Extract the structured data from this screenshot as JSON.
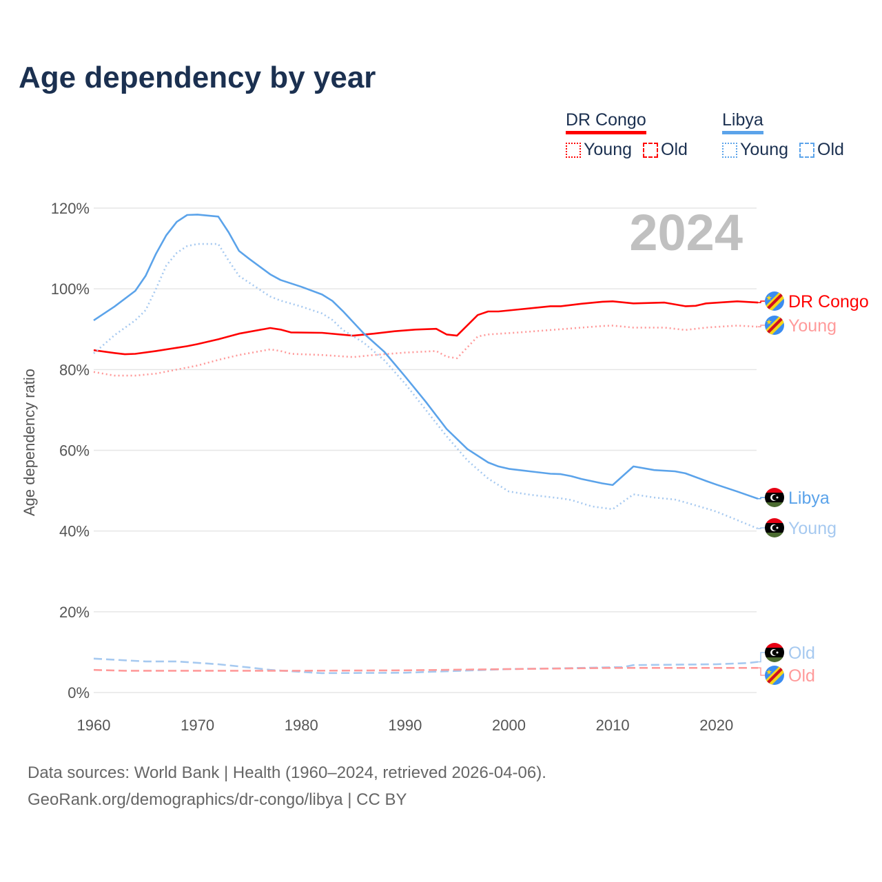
{
  "title": "Age dependency by year",
  "legend": {
    "groups": [
      {
        "country": "DR Congo",
        "color": "#ff0000",
        "items": [
          {
            "label": "Young",
            "style": "dotted"
          },
          {
            "label": "Old",
            "style": "dashed"
          }
        ]
      },
      {
        "country": "Libya",
        "color": "#5ba3ea",
        "items": [
          {
            "label": "Young",
            "style": "dotted"
          },
          {
            "label": "Old",
            "style": "dashed"
          }
        ]
      }
    ]
  },
  "year_label": "2024",
  "footer": {
    "line1": "Data sources: World Bank | Health (1960–2024, retrieved 2026-04-06).",
    "line2": "GeoRank.org/demographics/dr-congo/libya | CC BY"
  },
  "chart_data": {
    "type": "line",
    "title": "Age dependency by year",
    "xlabel": "",
    "ylabel": "Age dependency ratio",
    "xlim": [
      1960,
      2024
    ],
    "ylim": [
      0,
      120
    ],
    "x_ticks": [
      "1960",
      "1970",
      "1980",
      "1990",
      "2000",
      "2010",
      "2020"
    ],
    "y_ticks": [
      "0%",
      "20%",
      "40%",
      "60%",
      "80%",
      "100%",
      "120%"
    ],
    "grid": true,
    "legend_position": "top-right",
    "series": [
      {
        "name": "DR Congo",
        "end_label": "DR Congo",
        "flag": "dr-congo",
        "color": "#ff0000",
        "style": "solid",
        "points": [
          [
            1960,
            84.8
          ],
          [
            1962,
            84.1
          ],
          [
            1963,
            83.8
          ],
          [
            1964,
            83.9
          ],
          [
            1966,
            84.6
          ],
          [
            1969,
            85.8
          ],
          [
            1970,
            86.3
          ],
          [
            1972,
            87.5
          ],
          [
            1974,
            88.9
          ],
          [
            1977,
            90.3
          ],
          [
            1978,
            89.9
          ],
          [
            1979,
            89.2
          ],
          [
            1982,
            89.1
          ],
          [
            1985,
            88.4
          ],
          [
            1987,
            88.9
          ],
          [
            1989,
            89.5
          ],
          [
            1991,
            89.9
          ],
          [
            1993,
            90.1
          ],
          [
            1994,
            88.7
          ],
          [
            1995,
            88.4
          ],
          [
            1997,
            93.5
          ],
          [
            1998,
            94.4
          ],
          [
            1999,
            94.4
          ],
          [
            2001,
            94.9
          ],
          [
            2004,
            95.7
          ],
          [
            2005,
            95.7
          ],
          [
            2007,
            96.3
          ],
          [
            2009,
            96.8
          ],
          [
            2010,
            96.9
          ],
          [
            2012,
            96.4
          ],
          [
            2015,
            96.6
          ],
          [
            2017,
            95.7
          ],
          [
            2018,
            95.8
          ],
          [
            2019,
            96.4
          ],
          [
            2022,
            96.9
          ],
          [
            2024,
            96.6
          ]
        ]
      },
      {
        "name": "DR Congo Young",
        "end_label": "Young",
        "flag": "dr-congo",
        "color": "#ff9a9a",
        "style": "dotted",
        "points": [
          [
            1960,
            79.4
          ],
          [
            1962,
            78.5
          ],
          [
            1964,
            78.5
          ],
          [
            1966,
            79
          ],
          [
            1969,
            80.5
          ],
          [
            1970,
            81
          ],
          [
            1972,
            82.4
          ],
          [
            1974,
            83.6
          ],
          [
            1977,
            85
          ],
          [
            1978,
            84.6
          ],
          [
            1979,
            83.9
          ],
          [
            1982,
            83.6
          ],
          [
            1985,
            83.1
          ],
          [
            1987,
            83.6
          ],
          [
            1990,
            84.2
          ],
          [
            1993,
            84.6
          ],
          [
            1994,
            83.2
          ],
          [
            1995,
            82.8
          ],
          [
            1997,
            88.2
          ],
          [
            1998,
            88.7
          ],
          [
            2001,
            89.2
          ],
          [
            2005,
            90
          ],
          [
            2009,
            90.8
          ],
          [
            2010,
            90.9
          ],
          [
            2012,
            90.4
          ],
          [
            2015,
            90.4
          ],
          [
            2017,
            89.8
          ],
          [
            2019,
            90.4
          ],
          [
            2022,
            90.9
          ],
          [
            2024,
            90.6
          ]
        ]
      },
      {
        "name": "Libya",
        "end_label": "Libya",
        "flag": "libya",
        "color": "#5ba3ea",
        "style": "solid",
        "points": [
          [
            1960,
            92.2
          ],
          [
            1962,
            95.6
          ],
          [
            1964,
            99.5
          ],
          [
            1965,
            103.2
          ],
          [
            1966,
            108.7
          ],
          [
            1967,
            113.3
          ],
          [
            1968,
            116.6
          ],
          [
            1969,
            118.3
          ],
          [
            1970,
            118.4
          ],
          [
            1972,
            117.9
          ],
          [
            1973,
            114
          ],
          [
            1974,
            109.4
          ],
          [
            1975,
            107.4
          ],
          [
            1977,
            103.6
          ],
          [
            1978,
            102.2
          ],
          [
            1980,
            100.5
          ],
          [
            1982,
            98.6
          ],
          [
            1983,
            97
          ],
          [
            1984,
            94.5
          ],
          [
            1986,
            89
          ],
          [
            1988,
            84.4
          ],
          [
            1990,
            78.3
          ],
          [
            1992,
            72
          ],
          [
            1994,
            65.3
          ],
          [
            1996,
            60.3
          ],
          [
            1998,
            57
          ],
          [
            1999,
            56
          ],
          [
            2000,
            55.4
          ],
          [
            2002,
            54.8
          ],
          [
            2004,
            54.2
          ],
          [
            2005,
            54.1
          ],
          [
            2006,
            53.6
          ],
          [
            2007,
            52.9
          ],
          [
            2009,
            51.8
          ],
          [
            2010,
            51.4
          ],
          [
            2012,
            56
          ],
          [
            2014,
            55.1
          ],
          [
            2016,
            54.8
          ],
          [
            2017,
            54.3
          ],
          [
            2019,
            52.4
          ],
          [
            2020,
            51.5
          ],
          [
            2022,
            49.8
          ],
          [
            2024,
            48
          ]
        ]
      },
      {
        "name": "Libya Young",
        "end_label": "Young",
        "flag": "libya",
        "color": "#a6c9f0",
        "style": "dotted",
        "points": [
          [
            1960,
            84
          ],
          [
            1962,
            88.5
          ],
          [
            1964,
            92.2
          ],
          [
            1965,
            94.7
          ],
          [
            1966,
            100
          ],
          [
            1967,
            105.8
          ],
          [
            1968,
            108.9
          ],
          [
            1969,
            110.6
          ],
          [
            1970,
            111.1
          ],
          [
            1972,
            111.1
          ],
          [
            1973,
            107
          ],
          [
            1974,
            103.2
          ],
          [
            1975,
            101.5
          ],
          [
            1977,
            98.1
          ],
          [
            1978,
            97.1
          ],
          [
            1980,
            95.6
          ],
          [
            1982,
            93.9
          ],
          [
            1983,
            92.3
          ],
          [
            1984,
            89.8
          ],
          [
            1986,
            86.7
          ],
          [
            1988,
            82.3
          ],
          [
            1990,
            76.5
          ],
          [
            1992,
            70
          ],
          [
            1994,
            63.5
          ],
          [
            1996,
            57.5
          ],
          [
            1998,
            53
          ],
          [
            2000,
            49.8
          ],
          [
            2002,
            49
          ],
          [
            2004,
            48.4
          ],
          [
            2005,
            48.1
          ],
          [
            2006,
            47.7
          ],
          [
            2008,
            46.1
          ],
          [
            2010,
            45.4
          ],
          [
            2012,
            49.1
          ],
          [
            2014,
            48.3
          ],
          [
            2016,
            47.8
          ],
          [
            2017,
            47.1
          ],
          [
            2019,
            45.6
          ],
          [
            2020,
            44.8
          ],
          [
            2022,
            42.7
          ],
          [
            2024,
            40.6
          ]
        ]
      },
      {
        "name": "Libya Old",
        "end_label": "Old",
        "flag": "libya",
        "color": "#a6c9f0",
        "style": "dashed",
        "points": [
          [
            1960,
            8.4
          ],
          [
            1965,
            7.7
          ],
          [
            1968,
            7.7
          ],
          [
            1972,
            7
          ],
          [
            1975,
            6.2
          ],
          [
            1977,
            5.6
          ],
          [
            1980,
            5.1
          ],
          [
            1982,
            4.8
          ],
          [
            1990,
            4.9
          ],
          [
            2000,
            5.8
          ],
          [
            2005,
            6
          ],
          [
            2011,
            6.3
          ],
          [
            2012,
            6.8
          ],
          [
            2020,
            7
          ],
          [
            2023,
            7.3
          ],
          [
            2024,
            7.6
          ]
        ]
      },
      {
        "name": "DR Congo Old",
        "end_label": "Old",
        "flag": "dr-congo",
        "color": "#ff9a9a",
        "style": "dashed",
        "points": [
          [
            1960,
            5.6
          ],
          [
            1963,
            5.4
          ],
          [
            1970,
            5.4
          ],
          [
            1980,
            5.4
          ],
          [
            1990,
            5.5
          ],
          [
            2000,
            5.8
          ],
          [
            2010,
            6.1
          ],
          [
            2024,
            6.1
          ]
        ]
      }
    ]
  }
}
